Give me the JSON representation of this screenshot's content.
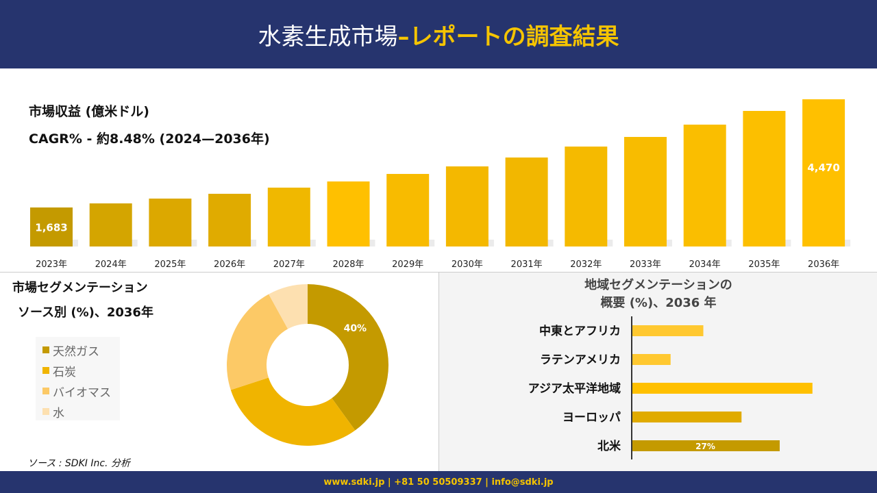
{
  "header": {
    "title_main": "水素生成市場",
    "title_accent": "–レポートの調査結果"
  },
  "revenue": {
    "title": "市場収益 (億米ドル)",
    "cagr": "CAGR% - 約8.48% (2024—2036年)"
  },
  "source_seg": {
    "title1": "市場セグメンテーション",
    "title2": "ソース別 (%)、2036年"
  },
  "regional": {
    "title1": "地域セグメンテーションの",
    "title2": "概要 (%)、2036 年"
  },
  "source_note": "ソース : SDKI Inc. 分析",
  "footer": "www.sdki.jp | +81 50 50509337 | info@sdki.jp",
  "colors": {
    "navy": "#26346e",
    "accent": "#f5c400"
  },
  "chart_data": [
    {
      "type": "bar",
      "title": "市場収益 (億米ドル)",
      "categories": [
        "2023年",
        "2024年",
        "2025年",
        "2026年",
        "2027年",
        "2028年",
        "2029年",
        "2030年",
        "2031年",
        "2032年",
        "2033年",
        "2034年",
        "2035年",
        "2036年"
      ],
      "values": [
        1683,
        1788,
        1912,
        2035,
        2194,
        2353,
        2547,
        2741,
        2970,
        3252,
        3500,
        3817,
        4170,
        4470
      ],
      "data_labels": {
        "0": "1,683",
        "13": "4,470"
      },
      "colors": [
        "#c49a00",
        "#d4a500",
        "#dca800",
        "#e0ab00",
        "#f0b800",
        "#ffc000",
        "#f8bb00",
        "#f4b800",
        "#f2b700",
        "#f5ba00",
        "#f8bc00",
        "#fabe00",
        "#fcbf00",
        "#ffc000"
      ],
      "ylim": [
        680,
        4500
      ],
      "grid": false
    },
    {
      "type": "pie",
      "subtype": "donut",
      "categories": [
        "天然ガス",
        "石炭",
        "バイオマス",
        "水"
      ],
      "values": [
        40,
        30,
        22,
        8
      ],
      "data_labels": {
        "0": "40%"
      },
      "colors": [
        "#c49a00",
        "#f0b400",
        "#fcc966",
        "#fde0b0"
      ],
      "legend": "left"
    },
    {
      "type": "bar",
      "orientation": "horizontal",
      "categories": [
        "中東とアフリカ",
        "ラテンアメリカ",
        "アジア太平洋地域",
        "ヨーロッパ",
        "北米"
      ],
      "values": [
        13,
        7,
        33,
        20,
        27
      ],
      "data_labels": {
        "4": "27%"
      },
      "colors": [
        "#ffc830",
        "#ffc830",
        "#ffc000",
        "#e0ab00",
        "#c49a00"
      ]
    }
  ]
}
